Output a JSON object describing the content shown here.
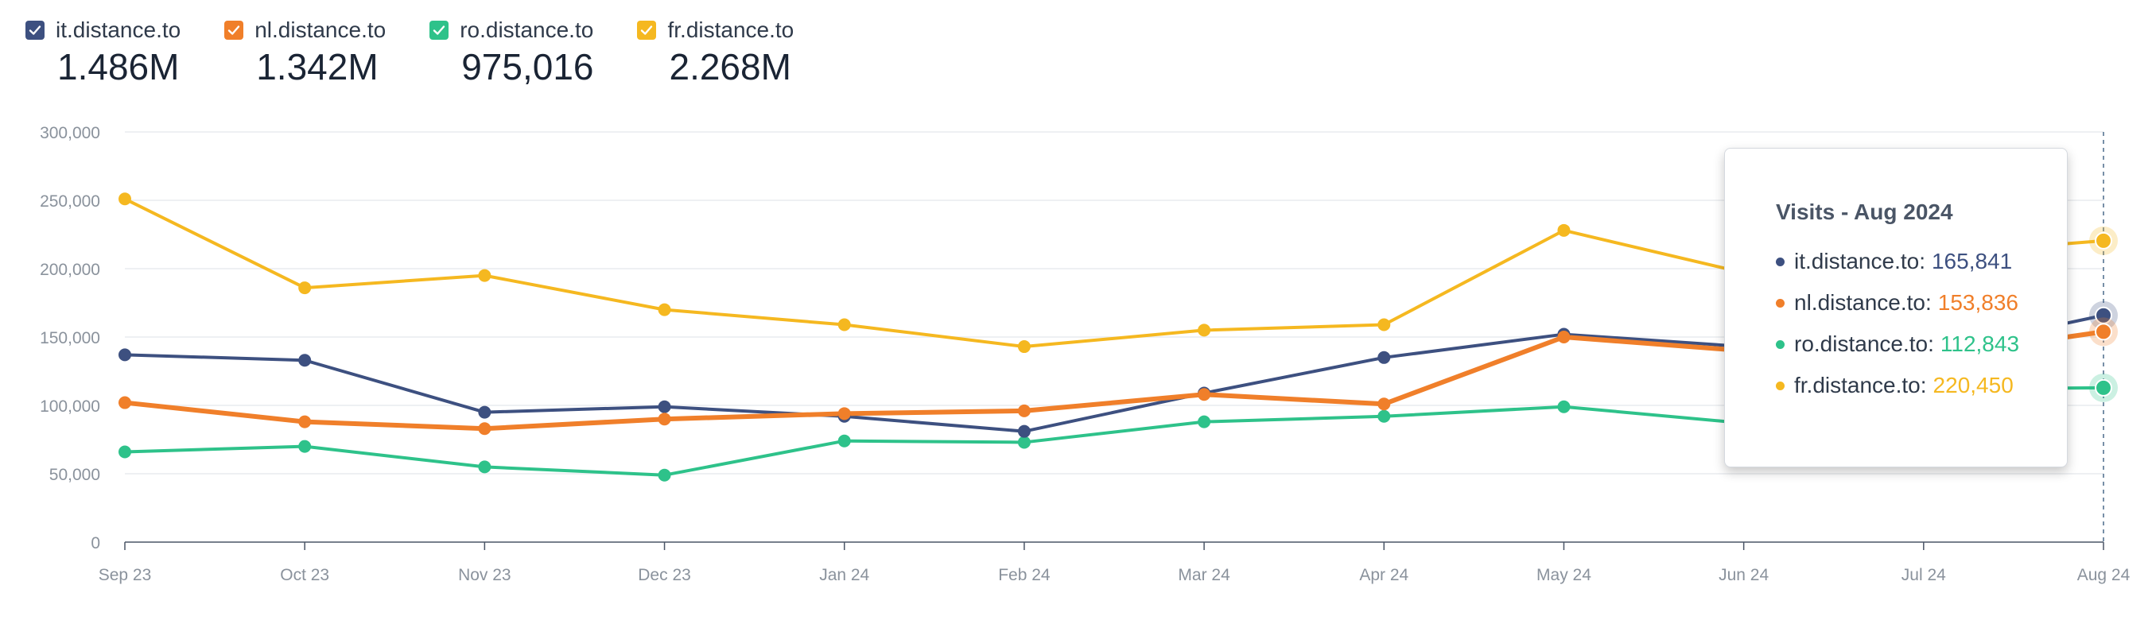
{
  "legend": [
    {
      "name": "it.distance.to",
      "total": "1.486M",
      "color": "#3d5080"
    },
    {
      "name": "nl.distance.to",
      "total": "1.342M",
      "color": "#f07f2a"
    },
    {
      "name": "ro.distance.to",
      "total": "975,016",
      "color": "#2ec28a"
    },
    {
      "name": "fr.distance.to",
      "total": "2.268M",
      "color": "#f5b820"
    }
  ],
  "tooltip": {
    "title": "Visits - Aug 2024",
    "rows": [
      {
        "label": "it.distance.to:",
        "value": "165,841",
        "color": "#3d5080"
      },
      {
        "label": "nl.distance.to:",
        "value": "153,836",
        "color": "#f07f2a"
      },
      {
        "label": "ro.distance.to:",
        "value": "112,843",
        "color": "#2ec28a"
      },
      {
        "label": "fr.distance.to:",
        "value": "220,450",
        "color": "#f5b820"
      }
    ]
  },
  "chart_data": {
    "type": "line",
    "title": "",
    "xlabel": "",
    "ylabel": "Visits",
    "categories": [
      "Sep 23",
      "Oct 23",
      "Nov 23",
      "Dec 23",
      "Jan 24",
      "Feb 24",
      "Mar 24",
      "Apr 24",
      "May 24",
      "Jun 24",
      "Jul 24",
      "Aug 24"
    ],
    "yticks": [
      0,
      50000,
      100000,
      150000,
      200000,
      250000,
      300000
    ],
    "ytick_labels": [
      "0",
      "50,000",
      "100,000",
      "150,000",
      "200,000",
      "250,000",
      "300,000"
    ],
    "ylim": [
      0,
      300000
    ],
    "grid": true,
    "series": [
      {
        "name": "it.distance.to",
        "color": "#3d5080",
        "width": 4,
        "values": [
          137000,
          133000,
          95000,
          99000,
          92000,
          81000,
          109000,
          135000,
          152000,
          143000,
          138000,
          165841
        ]
      },
      {
        "name": "nl.distance.to",
        "color": "#f07f2a",
        "width": 6,
        "values": [
          102000,
          88000,
          83000,
          90000,
          94000,
          96000,
          108000,
          101000,
          150000,
          140000,
          135000,
          153836
        ]
      },
      {
        "name": "ro.distance.to",
        "color": "#2ec28a",
        "width": 4,
        "values": [
          66000,
          70000,
          55000,
          49000,
          74000,
          73000,
          88000,
          92000,
          99000,
          87000,
          112000,
          112843
        ]
      },
      {
        "name": "fr.distance.to",
        "color": "#f5b820",
        "width": 4,
        "values": [
          251000,
          186000,
          195000,
          170000,
          159000,
          143000,
          155000,
          159000,
          228000,
          197000,
          210000,
          220450
        ]
      }
    ],
    "highlight_index": 11
  }
}
